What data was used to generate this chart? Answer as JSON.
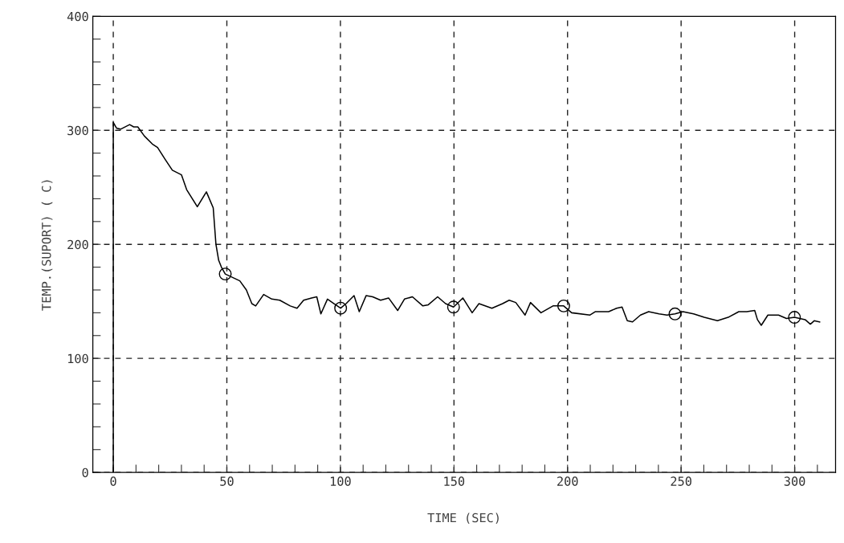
{
  "chart_data": {
    "type": "line",
    "xlabel": "TIME (SEC)",
    "ylabel": "TEMP.(SUPORT) ( C)",
    "xlim": [
      -9,
      318
    ],
    "ylim": [
      0,
      400
    ],
    "xticks": [
      0,
      {
        "value": 10,
        "label": null
      },
      {
        "value": 20,
        "label": null
      },
      {
        "value": 30,
        "label": null
      },
      {
        "value": 40,
        "label": null
      },
      50,
      {
        "value": 60,
        "label": null
      },
      {
        "value": 70,
        "label": null
      },
      {
        "value": 80,
        "label": null
      },
      {
        "value": 90,
        "label": null
      },
      100,
      {
        "value": 110,
        "label": null
      },
      {
        "value": 120,
        "label": null
      },
      {
        "value": 130,
        "label": null
      },
      {
        "value": 140,
        "label": null
      },
      150,
      {
        "value": 160,
        "label": null
      },
      {
        "value": 170,
        "label": null
      },
      {
        "value": 180,
        "label": null
      },
      {
        "value": 190,
        "label": null
      },
      200,
      {
        "value": 210,
        "label": null
      },
      {
        "value": 220,
        "label": null
      },
      {
        "value": 230,
        "label": null
      },
      {
        "value": 240,
        "label": null
      },
      250,
      {
        "value": 260,
        "label": null
      },
      {
        "value": 270,
        "label": null
      },
      {
        "value": 280,
        "label": null
      },
      {
        "value": 290,
        "label": null
      },
      300,
      {
        "value": 310,
        "label": null
      }
    ],
    "yticks": [
      0,
      {
        "value": 20,
        "label": null
      },
      {
        "value": 40,
        "label": null
      },
      {
        "value": 60,
        "label": null
      },
      {
        "value": 80,
        "label": null
      },
      100,
      {
        "value": 120,
        "label": null
      },
      {
        "value": 140,
        "label": null
      },
      {
        "value": 160,
        "label": null
      },
      {
        "value": 180,
        "label": null
      },
      200,
      {
        "value": 220,
        "label": null
      },
      {
        "value": 240,
        "label": null
      },
      {
        "value": 260,
        "label": null
      },
      {
        "value": 280,
        "label": null
      },
      300,
      {
        "value": 320,
        "label": null
      },
      {
        "value": 340,
        "label": null
      },
      {
        "value": 360,
        "label": null
      },
      {
        "value": 380,
        "label": null
      },
      400
    ],
    "grid": true,
    "line_style": "solid",
    "series": [
      {
        "color": "#000000",
        "marker": "none",
        "x": [
          0,
          0,
          1.4,
          3.2,
          7.2,
          9,
          10.8,
          13.7,
          17.2,
          19.5,
          23,
          26,
          30,
          32.3,
          37,
          41,
          44,
          45.2,
          46.4,
          47.6,
          49.3,
          55.7,
          58.6,
          61,
          62.7,
          66.2,
          69.8,
          73.3,
          77.9,
          80.9,
          83.8,
          87.3,
          89.6,
          91.4,
          94.3,
          97.2,
          100.1,
          102.5,
          106,
          108.3,
          111.3,
          114.2,
          117.7,
          121.2,
          125.2,
          128.2,
          131.7,
          136.3,
          138.7,
          142.8,
          146.3,
          149.8,
          153.9,
          158,
          161,
          166.7,
          171.4,
          174.3,
          177.2,
          181.3,
          183.7,
          188.3,
          193.6,
          198.3,
          201.8,
          209.9,
          212.3,
          218.1,
          221.6,
          224,
          226.3,
          228.6,
          232.1,
          235.7,
          240.3,
          243.8,
          247.3,
          250.8,
          255.5,
          260.2,
          266,
          270.7,
          275.4,
          278.9,
          282.4,
          283.6,
          285.3,
          288.2,
          292.9,
          296.4,
          299.9,
          304.6,
          306.9,
          308.6,
          311
        ],
        "values": [
          0,
          307,
          302,
          301,
          305,
          303,
          303,
          295,
          288,
          285,
          274,
          265,
          261,
          248,
          233,
          246,
          232,
          200,
          186,
          180,
          174,
          168,
          160,
          148,
          146,
          156,
          152,
          151,
          146,
          144,
          151,
          153,
          154,
          139,
          152,
          148,
          144,
          148,
          155,
          141,
          155,
          154,
          151,
          153,
          142,
          152,
          154,
          146,
          147,
          154,
          148,
          145,
          153,
          140,
          148,
          144,
          148,
          151,
          149,
          138,
          149,
          140,
          146,
          146,
          140,
          138,
          141,
          141,
          144,
          145,
          133,
          132,
          138,
          141,
          139,
          138,
          139,
          141,
          139,
          136,
          133,
          136,
          141,
          141,
          142,
          134,
          129,
          138,
          138,
          135,
          136,
          134,
          130,
          133,
          132
        ]
      },
      {
        "type": "scatter",
        "color": "#000000",
        "marker": "circle",
        "x": [
          49.3,
          100.1,
          149.8,
          198.3,
          247.3,
          299.9
        ],
        "values": [
          174,
          144,
          145,
          146,
          139,
          136
        ]
      }
    ]
  }
}
